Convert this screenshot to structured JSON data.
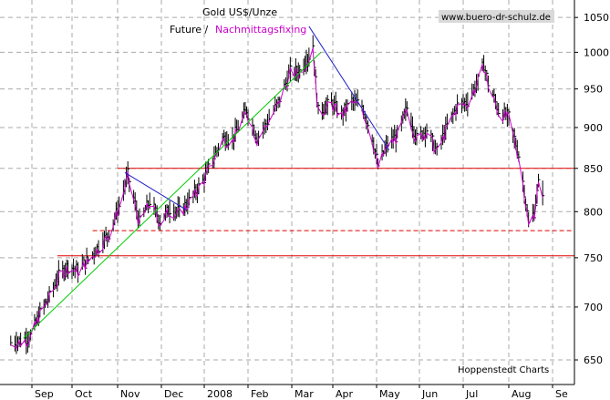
{
  "chart_data": {
    "type": "line",
    "title": "Gold US$/Unze",
    "subtitle_prefix": "Future /",
    "subtitle_series": "Nachmittagsfixing",
    "watermark": "www.buero-dr-schulz.de",
    "credit": "Hoppenstedt Charts",
    "y_ticks": [
      650,
      700,
      750,
      800,
      850,
      900,
      950,
      1000,
      1050
    ],
    "ylim": [
      628,
      1076
    ],
    "y_scale": "log",
    "x_tick_labels": [
      "Sep",
      "Oct",
      "Nov",
      "Dec",
      "2008",
      "Feb",
      "Mar",
      "Apr",
      "May",
      "Jun",
      "Jul",
      "Aug",
      "Se"
    ],
    "grid": true,
    "colors": {
      "bars": "#000000",
      "series": "#cc00cc",
      "horizontal_lines": "#e00000",
      "up_trend": "#00cc00",
      "down_trend": "#2020cc",
      "grid": "#aaaaaa",
      "watermark_bg": "#d9d9d9"
    },
    "series": [
      {
        "name": "Nachmittagsfixing",
        "points": [
          [
            "2007-08-17",
            666
          ],
          [
            "2007-08-24",
            668
          ],
          [
            "2007-08-31",
            672
          ],
          [
            "2007-09-07",
            694
          ],
          [
            "2007-09-14",
            710
          ],
          [
            "2007-09-21",
            731
          ],
          [
            "2007-09-28",
            742
          ],
          [
            "2007-10-05",
            737
          ],
          [
            "2007-10-12",
            748
          ],
          [
            "2007-10-19",
            762
          ],
          [
            "2007-10-26",
            776
          ],
          [
            "2007-11-02",
            806
          ],
          [
            "2007-11-08",
            842
          ],
          [
            "2007-11-16",
            788
          ],
          [
            "2007-11-23",
            812
          ],
          [
            "2007-11-30",
            790
          ],
          [
            "2007-12-07",
            803
          ],
          [
            "2007-12-14",
            800
          ],
          [
            "2007-12-21",
            812
          ],
          [
            "2007-12-31",
            835
          ],
          [
            "2008-01-07",
            860
          ],
          [
            "2008-01-14",
            887
          ],
          [
            "2008-01-21",
            885
          ],
          [
            "2008-01-31",
            923
          ],
          [
            "2008-02-07",
            887
          ],
          [
            "2008-02-14",
            908
          ],
          [
            "2008-02-21",
            932
          ],
          [
            "2008-02-29",
            973
          ],
          [
            "2008-03-07",
            974
          ],
          [
            "2008-03-14",
            995
          ],
          [
            "2008-03-17",
            1011
          ],
          [
            "2008-03-19",
            960
          ],
          [
            "2008-03-21",
            920
          ],
          [
            "2008-03-31",
            932
          ],
          [
            "2008-04-07",
            917
          ],
          [
            "2008-04-14",
            934
          ],
          [
            "2008-04-21",
            928
          ],
          [
            "2008-04-28",
            888
          ],
          [
            "2008-05-02",
            853
          ],
          [
            "2008-05-09",
            880
          ],
          [
            "2008-05-16",
            890
          ],
          [
            "2008-05-23",
            925
          ],
          [
            "2008-05-30",
            886
          ],
          [
            "2008-06-06",
            898
          ],
          [
            "2008-06-13",
            870
          ],
          [
            "2008-06-20",
            902
          ],
          [
            "2008-06-27",
            928
          ],
          [
            "2008-07-04",
            934
          ],
          [
            "2008-07-11",
            960
          ],
          [
            "2008-07-15",
            984
          ],
          [
            "2008-07-18",
            958
          ],
          [
            "2008-07-25",
            922
          ],
          [
            "2008-08-01",
            913
          ],
          [
            "2008-08-08",
            866
          ],
          [
            "2008-08-12",
            824
          ],
          [
            "2008-08-15",
            786
          ],
          [
            "2008-08-19",
            800
          ],
          [
            "2008-08-22",
            831
          ],
          [
            "2008-08-25",
            824
          ]
        ]
      }
    ],
    "horizontal_lines": [
      {
        "y": 850,
        "x_from": "2007-11-01",
        "style": "solid"
      },
      {
        "y": 779,
        "x_from": "2007-10-15",
        "style": "dashed"
      },
      {
        "y": 752,
        "x_from": "2007-09-20",
        "style": "solid"
      }
    ],
    "trend_lines": [
      {
        "kind": "up",
        "from": [
          "2007-08-26",
          670
        ],
        "to": [
          "2008-03-23",
          1000
        ]
      },
      {
        "kind": "down",
        "from": [
          "2007-11-06",
          845
        ],
        "to": [
          "2007-12-19",
          802
        ]
      },
      {
        "kind": "down",
        "from": [
          "2008-03-14",
          1037
        ],
        "to": [
          "2008-05-10",
          872
        ]
      }
    ]
  }
}
